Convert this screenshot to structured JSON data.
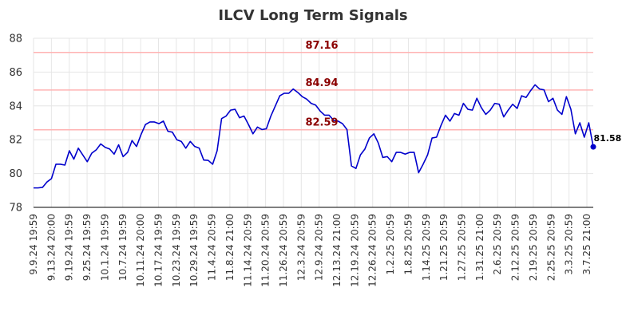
{
  "chart_data": {
    "type": "line",
    "title": "ILCV Long Term Signals",
    "xlabel": "",
    "ylabel": "",
    "ylim": [
      78,
      88
    ],
    "yticks": [
      "78",
      "80",
      "82",
      "84",
      "86",
      "88"
    ],
    "grid": true,
    "x_tick_labels": [
      "9.9.24 19:59",
      "9.13.24 20:00",
      "9.19.24 19:59",
      "9.25.24 19:59",
      "10.1.24 19:59",
      "10.7.24 19:59",
      "10.11.24 20:00",
      "10.17.24 19:59",
      "10.23.24 19:59",
      "10.29.24 19:59",
      "11.4.24 20:59",
      "11.8.24 21:00",
      "11.14.24 20:59",
      "11.20.24 20:59",
      "11.26.24 20:59",
      "12.3.24 20:59",
      "12.9.24 20:59",
      "12.13.24 21:00",
      "12.19.24 20:59",
      "12.26.24 20:59",
      "1.2.25 20:59",
      "1.8.25 20:59",
      "1.14.25 20:59",
      "1.21.25 20:59",
      "1.27.25 20:59",
      "1.31.25 21:00",
      "2.6.25 20:59",
      "2.12.25 20:59",
      "2.19.25 20:59",
      "2.25.25 20:59",
      "3.3.25 20:59",
      "3.7.25 21:00"
    ],
    "signal_lines": [
      {
        "value": 87.16,
        "label": "87.16",
        "color": "#ffb3b3"
      },
      {
        "value": 84.94,
        "label": "84.94",
        "color": "#ffb3b3"
      },
      {
        "value": 82.59,
        "label": "82.59",
        "color": "#ffb3b3"
      }
    ],
    "series": [
      {
        "color": "#0000cc",
        "values": [
          79.15,
          79.15,
          79.18,
          79.5,
          79.7,
          80.55,
          80.55,
          80.5,
          81.35,
          80.85,
          81.5,
          81.1,
          80.7,
          81.2,
          81.4,
          81.75,
          81.55,
          81.45,
          81.15,
          81.7,
          81.0,
          81.25,
          81.95,
          81.6,
          82.3,
          82.9,
          83.05,
          83.05,
          82.95,
          83.1,
          82.5,
          82.45,
          82.0,
          81.9,
          81.5,
          81.9,
          81.6,
          81.5,
          80.8,
          80.78,
          80.55,
          81.35,
          83.25,
          83.4,
          83.75,
          83.8,
          83.3,
          83.4,
          82.9,
          82.35,
          82.75,
          82.6,
          82.65,
          83.4,
          84.0,
          84.6,
          84.75,
          84.75,
          85.0,
          84.8,
          84.55,
          84.4,
          84.15,
          84.05,
          83.7,
          83.45,
          83.45,
          83.15,
          83.1,
          82.95,
          82.6,
          80.45,
          80.3,
          81.1,
          81.45,
          82.1,
          82.35,
          81.8,
          80.95,
          81.0,
          80.7,
          81.25,
          81.25,
          81.15,
          81.25,
          81.25,
          80.05,
          80.55,
          81.1,
          82.1,
          82.15,
          82.85,
          83.45,
          83.1,
          83.55,
          83.45,
          84.15,
          83.8,
          83.75,
          84.45,
          83.9,
          83.5,
          83.75,
          84.15,
          84.1,
          83.35,
          83.75,
          84.1,
          83.85,
          84.6,
          84.5,
          84.9,
          85.25,
          85.0,
          84.95,
          84.25,
          84.45,
          83.75,
          83.5,
          84.55,
          83.8,
          82.35,
          83.0,
          82.15,
          83.0,
          81.58
        ]
      }
    ],
    "last_value_label": "81.58"
  }
}
